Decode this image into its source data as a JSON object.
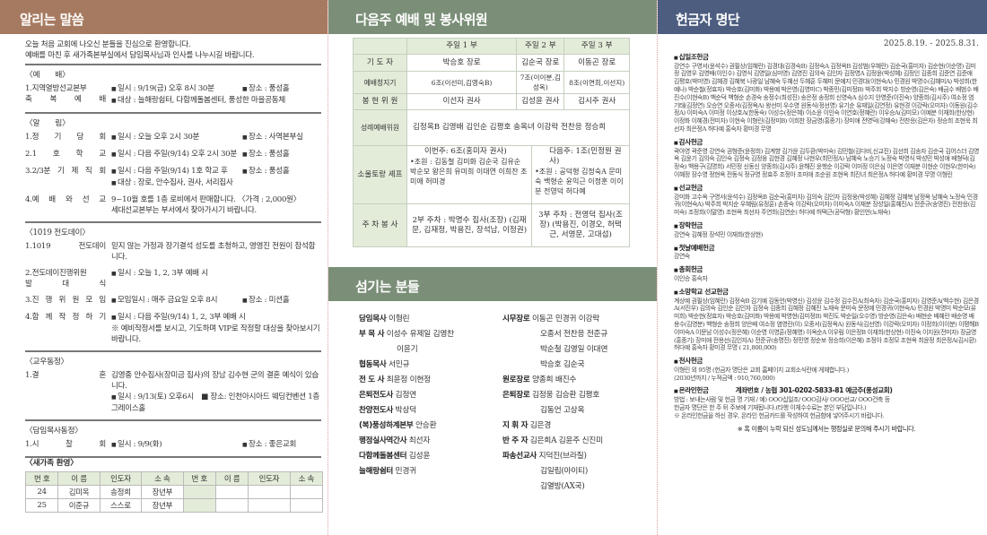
{
  "colors": {
    "notice_header": "#a67a60",
    "service_header": "#7b8f78",
    "donor_header": "#4c5d80",
    "table_label_bg": "#e3ecd9"
  },
  "notices": {
    "title": "알리는 말씀",
    "intro": [
      "오늘 처음 교회에 나오신 분들을 진심으로 환영합니다.",
      "예배를 마친 후 새가족본부실에서 담임목사님과 인사를 나누시길 바랍니다."
    ],
    "worship": {
      "heading": "〈예　　배〉",
      "items": [
        {
          "label": "1.지역열방선교본부",
          "label2": "축 복 예 배",
          "lines": [
            "일시 : 9/19(금) 오후 8시 30분",
            "대상 : 늘해랑쉼터, 다함께돌봄센터, 풍성한 마을공동체"
          ],
          "place": "장소 : 풍성홀"
        }
      ]
    },
    "announce": {
      "heading": "〈알　　림〉",
      "items": [
        {
          "label": "1.정 기 당 회",
          "lines": [
            "일시 : 오늘 오후 2시 30분"
          ],
          "place": "장소 : 사역본부실"
        },
        {
          "label": "2.1 호 학 교",
          "lines": [
            "일시 : 다음 주일(9/14) 오후 2시 30분"
          ],
          "place": "장소 : 풍성홀"
        },
        {
          "label": "3.2/3분 기 제 직 회",
          "lines": [
            "일시 : 다음 주일(9/14) 1호 학교 후",
            "대상 : 장로, 안수집사, 권사, 서리집사"
          ],
          "place": "장소 : 풍성홀"
        },
        {
          "label": "4.예 배 와 선 교",
          "lines": [
            "9~10월 호를 1층 로비에서 판매합니다. 〈가격 : 2,000원〉",
            "세대선교본부는 부서에서 찾아가시기 바랍니다."
          ],
          "place": ""
        }
      ]
    },
    "evangelism": {
      "heading": "〈1019 전도데이〉",
      "items": [
        {
          "label": "1.1019 전도데이",
          "lines": [
            "믿지 않는 가정과 장기결석 성도를 초청하고, 영영진 전원이 참석합니다."
          ],
          "place": ""
        },
        {
          "label": "2.전도데이진행위원",
          "label2": "발 대 식",
          "lines": [
            "일시 : 오늘 1, 2, 3부 예배 시"
          ],
          "place": ""
        },
        {
          "label": "3.진 행 위 원 모 임",
          "lines": [
            "모임일시 : 매주 금요일 오후 8시"
          ],
          "place": "장소 : 미션홀"
        },
        {
          "label": "4.함 께 작 정 하 기",
          "lines": [
            "일시 : 다음 주일(9/14) 1, 2, 3부 예배 시",
            "※ 예비작정서를 보시고, 기도하며 VIP로 작정할 대상을 찾아보시기 바랍니다."
          ],
          "place": ""
        }
      ]
    },
    "members": {
      "heading": "〈교우동정〉",
      "items": [
        {
          "label": "1.결　　혼",
          "lines": [
            "김영종 안수집사(장미금 집사)의 장남 김수현 군의 결혼 예식이 있습니다.",
            "일시 : 9/13(토) 오후6시　■ 장소: 인천아시아드 웨딩컨벤션 1층 그레이스홀"
          ],
          "place": ""
        }
      ]
    },
    "pastor": {
      "heading": "〈담임목사동정〉",
      "items": [
        {
          "label": "1.시　찰　회",
          "lines": [
            "일시 : 9/9(화)"
          ],
          "place": "장소 : 좋은교회"
        }
      ]
    },
    "newcomers": {
      "heading": "〈새가족 환영〉",
      "headers": [
        "번 호",
        "이 름",
        "인도자",
        "소 속",
        "번 호",
        "이 름",
        "인도자",
        "소 속"
      ],
      "rows": [
        [
          "24",
          "김미옥",
          "송정희",
          "장년부",
          "",
          "",
          "",
          ""
        ],
        [
          "25",
          "이준규",
          "스스로",
          "장년부",
          "",
          "",
          "",
          ""
        ]
      ]
    }
  },
  "service": {
    "title": "다음주 예배 및 봉사위원",
    "columns": [
      "주일 1 부",
      "주일 2 부",
      "주일 3 부"
    ],
    "prayer": {
      "label": "기 도 자",
      "values": [
        "박승호 장로",
        "김순국 장로",
        "이동곤 장로"
      ]
    },
    "cleaning": {
      "label": "예배청지기",
      "values": [
        "6조(이선미,김영숙B)",
        "7조(이이분,김성옥)",
        "8조(이연희,이선지)"
      ]
    },
    "offering": {
      "label": "봉 헌 위 원",
      "values": [
        "이선자 권사",
        "김성윤 권사",
        "김시주 권사"
      ]
    },
    "holy": {
      "label": "성례예배위원",
      "value": "김정옥B 김영배 김인순 김평호 송옥녀 이강락 전찬응 정승희"
    },
    "soul": {
      "label": "소울토랑 셰프",
      "this": "이번주: 6조(홍미자 권사)",
      "this_members": "•조원 : 김동철 김미화 김순국 김유순 박순모 왕은희 유미희 이대연 이희찬 조미애 허미경",
      "next": "다음주: 1조(민정원 권사)",
      "next_members": "•조원 : 공덕형 김정숙A 문미숙 백형순 윤익근 이정훈 이이분 전영덕 허다예"
    },
    "parking": {
      "label": "주 차 봉 사",
      "v2": "2부 주차 : 박명수 집사(조장) (김재문, 김재정, 박용진, 장석남, 이정권)",
      "v3": "3부 주차 : 전영덕 집사(조장) (박용진, 이경오, 허택근, 서영문, 고대섭)"
    }
  },
  "servants": {
    "title": "섬기는 분들",
    "left": [
      {
        "role": "담임목사",
        "names": [
          "이형린"
        ]
      },
      {
        "role": "부 목 사",
        "names": [
          "이성수 유제일 김영찬",
          "이윤기"
        ]
      },
      {
        "role": "협동목사",
        "names": [
          "서민규"
        ]
      },
      {
        "role": "전 도 사",
        "names": [
          "최윤정 이현정"
        ]
      },
      {
        "role": "은퇴전도사",
        "names": [
          "김정연"
        ]
      },
      {
        "role": "찬양전도사",
        "names": [
          "박상덕"
        ]
      },
      {
        "role": "(복)풍성하계본부",
        "names": [
          "안승환"
        ]
      },
      {
        "role": "행정실사역간사",
        "names": [
          "최선자"
        ]
      },
      {
        "role": "다함께돌봄센터",
        "names": [
          "김성윤"
        ]
      },
      {
        "role": "늘해랑쉼터",
        "names": [
          "민경귀"
        ]
      }
    ],
    "right": [
      {
        "role": "시무장로",
        "names": [
          "이동곤 민경귀 이강락",
          "오종서 전찬응 전준규",
          "박순철 김영일 이대연",
          "박승호 김순국"
        ]
      },
      {
        "role": "원로장로",
        "names": [
          "양종희 배진수"
        ]
      },
      {
        "role": "은퇴장로",
        "names": [
          "김정웅 김승환 김평호",
          "김동언 고상옥"
        ]
      },
      {
        "role": "지 휘 자",
        "names": [
          "김은경"
        ]
      },
      {
        "role": "반 주 자",
        "names": [
          "김은희A 김윤주 신진미"
        ]
      },
      {
        "role": "파송선교사",
        "names": [
          "지덕진(브라질)",
          "김일립(아이티)",
          "김열방(AX국)"
        ]
      }
    ]
  },
  "donors": {
    "title": "헌금자 명단",
    "period": "2025.8.19. - 2025.8.31.",
    "sections": [
      {
        "title": "십일조헌금",
        "text": "강연수 구영서(윤석수) 권필상(임혜란) 김경대(김경숙B) 김정숙A 김정옥B 김성범(우혜란) 김순국(홍미자) 김순현(이순명) 김미정 김영우 김영배(이인수) 김영식 김영일(심미영) 김영진 김의숙 김인자 김정영A 김정윤(박성혜) 김정인 김종희 김준연 김준애 김평호(박미영) 김혜경 김혜북 나광일 남혜숙 두혜선 두혜훈 두혜미 문예지 민경대(이현숙A) 민경원 박명수(김혜미A) 박성희(한예나) 박순철(정효자) 박승호(김미화) 박용예 박은영(김영미C) 박종민(김미정B) 박주희 박지수 방순영(김은숙) 배금수 배범수 배진수(이현숙B) 백순덕 백형순 손경숙 송정수(최성진) 송은정 송정희 신영숙A 심수지 안영준(이진숙) 양종희(김시주) 여소정 염기태(김정연) 오승연 오종서(김정옥A) 왕선미 우수영 원동식(정선영) 유기순 유재일(김연정) 유현경 이강락(오미자) 이동원(김수정A) 이미숙A 이미정 이상호A(한동숙) 이성수(정은혜) 이소윤 이인숙 이연호(정혜란) 이우승A(김미모) 이예분 이재희(한상현) 이정화 이혜경(전미자) 이현숙 이형린(김정미B) 이희찬 장금영(홍종기) 장미애 전영덕(강혜숙) 전찬응(김은자) 정승희 조현욱 최선자 최은정A 허다예 홍숙자 황미경 무명"
      },
      {
        "title": "감사헌금",
        "text": "곽아영 곽준영 강연숙 권형준(윤정희) 김계향 김가윤 김두환(박미숙) 김민철(김다비,신교진) 김선희 김송자 김순국 김어스더 김영옥 김윤기 김의숙 김인숙 김정숙 김정웅 김현경 김혜정 나현우(최민정A) 남혜숙 노승기 노정숙 박영식 박성민 박성애 배형덕(김정숙) 백용구(김명희) 서민정 신동신 양종희(김시주) 윤해진 윤행순 이강락 이미정 이은심 이은영 이재분 이현순 이현우(한미숙) 이혜정 장수영 정현옥 전동식 정규영 정효주 조정아 조미애 조순원 조현옥 최진녀 최은정A 허다예 황미경 무명 이형린"
      },
      {
        "title": "선교헌금",
        "text": "강미화 고수옥 구영서(윤석수) 김정옥B 김순국(홍미자) 김의숙 김인자 김정웅(박성혜) 김혜정 김혜북 남정옥 남혜숙 노정숙 민경귀(이현숙A) 박주희 박지순 우혜림(유정훈) 손종숙 이강락(오미자) 이미숙A 이재분 장성일(홍혜진A) 전준규(송명진) 전찬응(김미숙) 조정희(이말영) 조현옥 최선자 주연희(김연순) 허다예 허택근(공덕형) 황인언(노재숙)"
      },
      {
        "title": "장학헌금",
        "text": "강연숙 김혜정 장석민 이재희(한상현)"
      },
      {
        "title": "첫날예배헌금",
        "text": "강연숙"
      },
      {
        "title": "총회헌금",
        "text": "이인승 홍숙자"
      },
      {
        "title": "소망학교 선교헌금",
        "text": "계상예 권필상(임혜란) 김정숙B 김기예 김동언(박영신) 김성윤 김수정 김수진A(최숙자) 김순국(홍미자) 김영준A(백수현) 김은경A(서진우) 김의숙 김인순 김인자 김정숙 김종희 김혜정 김혜진 노재숙 문미숙 문정예 민경귀(이현숙A) 민경원 박명미 박순모(유미희) 박순현(정효자) 박승호(김미화) 박용예 박영현(김미정B) 박진도 박순일(오수영) 방순영(김은숙) 배현순 배혜란 배순명 배용수(김영분) 백형순 송정희 양은배 여소정 염영란(이) 오종서(김정옥A) 원동식(김선영) 이강락(오미자) 이정희(이이분) 이평해B 이미숙A 이문남 이성수(정은혜) 이순영 이영훈(정혜영) 이옥순A 이우림 이은정B 이재희(한상현) 이진숙 이지원(전미자) 장금영(홍종기) 장미애 전용선(김인자A) 전준규(송명진) 정민영 정순보 정승희(이은혜) 조정아 조정모 조현옥 최윤정 최은정A(김시환) 허다예 홍숙자 황미경 무명 ( 21,800,000)"
      },
      {
        "title": "천사헌금",
        "text": "이형린 외 95명 (헌금자 명단은 교회 홈페이지 교회소식란에 게재합니다.)",
        "text2": "(2030년까지 /  누적금액 : 910,760,000)"
      },
      {
        "title": "온라인헌금",
        "account": "계좌번호 / 농협 301-0202-5833-81 예금주(풍성교회)",
        "text": "방법 : 보내는사람 및 헌금 명 기재  / 예) OOO십일조/ OOO감사/ OOO선교/ OOO건축 등",
        "text2": "헌금자 명단은 한 주 뒤 주보에 기재됩니다.(타행 이체수수료는 본인 부담입니다.)",
        "text3": "※ 온라인헌금을 하신 경우, 온라인 헌금카드를 작성하여 헌금함에 넣어주시기 바랍니다."
      }
    ],
    "footer": "※ 혹 이름이 누락 되신 성도님께서는 행정실로 문의해 주시기 바랍니다."
  }
}
